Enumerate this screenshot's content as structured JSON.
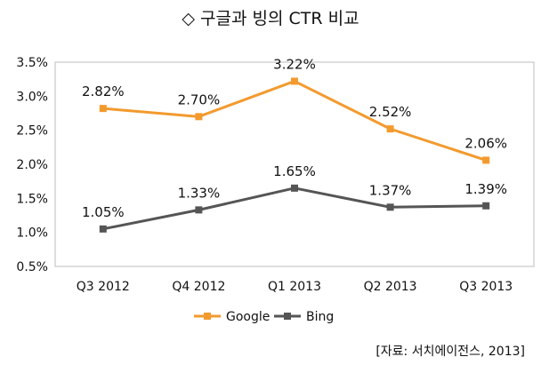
{
  "chart_data": {
    "type": "line",
    "title": "◇ 구글과 빙의 CTR 비교",
    "categories": [
      "Q3 2012",
      "Q4 2012",
      "Q1 2013",
      "Q2 2013",
      "Q3 2013"
    ],
    "series": [
      {
        "name": "Google",
        "color": "#F39A2E",
        "values": [
          2.82,
          2.7,
          3.22,
          2.52,
          2.06
        ],
        "labels": [
          "2.82%",
          "2.70%",
          "3.22%",
          "2.52%",
          "2.06%"
        ]
      },
      {
        "name": "Bing",
        "color": "#555555",
        "values": [
          1.05,
          1.33,
          1.65,
          1.37,
          1.39
        ],
        "labels": [
          "1.05%",
          "1.33%",
          "1.65%",
          "1.37%",
          "1.39%"
        ]
      }
    ],
    "y_ticks": [
      "0.5%",
      "1.0%",
      "1.5%",
      "2.0%",
      "2.5%",
      "3.0%",
      "3.5%"
    ],
    "ylim": [
      0.5,
      3.5
    ],
    "grid": false,
    "legend_position": "bottom",
    "source": "[자료: 서치에이전스, 2013]"
  }
}
